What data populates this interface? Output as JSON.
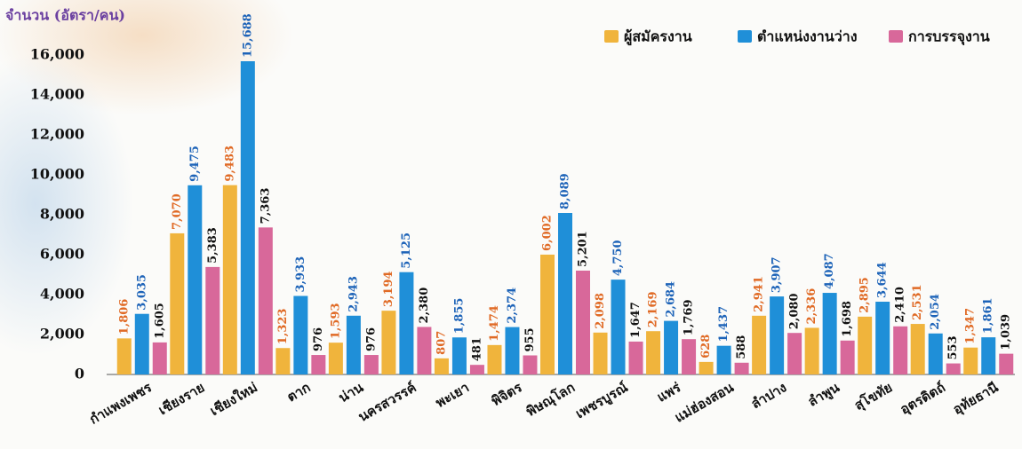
{
  "chart_data": {
    "type": "bar",
    "y_axis_label": "จำนวน (อัตรา/คน)",
    "categories": [
      "กำแพงเพชร",
      "เชียงราย",
      "เชียงใหม่",
      "ตาก",
      "น่าน",
      "นครสวรรค์",
      "พะเยา",
      "พิจิตร",
      "พิษณุโลก",
      "เพชรบูรณ์",
      "แพร่",
      "แม่ฮ่องสอน",
      "ลำปาง",
      "ลำพูน",
      "สุโขทัย",
      "อุตรดิตถ์",
      "อุทัยธานี"
    ],
    "series": [
      {
        "name": "ผู้สมัครงาน",
        "color": "#f0b43c",
        "label_color": "#e06a25",
        "values": [
          1806,
          7070,
          9483,
          1323,
          1593,
          3194,
          807,
          1474,
          6002,
          2098,
          2169,
          628,
          2941,
          2336,
          2895,
          2531,
          1347
        ],
        "value_labels": [
          "1,806",
          "7,070",
          "9,483",
          "1,323",
          "1,593",
          "3,194",
          "807",
          "1,474",
          "6,002",
          "2,098",
          "2,169",
          "628",
          "2,941",
          "2,336",
          "2,895",
          "2,531",
          "1,347"
        ]
      },
      {
        "name": "ตำแหน่งงานว่าง",
        "color": "#1f8fd8",
        "label_color": "#1d63b8",
        "values": [
          3035,
          9475,
          15688,
          3933,
          2943,
          5125,
          1855,
          2374,
          8089,
          4750,
          2684,
          1437,
          3907,
          4087,
          3644,
          2054,
          1861
        ],
        "value_labels": [
          "3,035",
          "9,475",
          "15,688",
          "3,933",
          "2,943",
          "5,125",
          "1,855",
          "2,374",
          "8,089",
          "4,750",
          "2,684",
          "1,437",
          "3,907",
          "4,087",
          "3,644",
          "2,054",
          "1,861"
        ]
      },
      {
        "name": "การบรรจุงาน",
        "color": "#d8689a",
        "label_color": "#111111",
        "values": [
          1605,
          5383,
          7363,
          976,
          976,
          2380,
          481,
          955,
          5201,
          1647,
          1769,
          588,
          2080,
          1698,
          2410,
          553,
          1039
        ],
        "value_labels": [
          "1,605",
          "5,383",
          "7,363",
          "976",
          "976",
          "2,380",
          "481",
          "955",
          "5,201",
          "1,647",
          "1,769",
          "588",
          "2,080",
          "1,698",
          "2,410",
          "553",
          "1,039"
        ]
      }
    ],
    "ylim": [
      0,
      16000
    ],
    "yticks": [
      0,
      {
        "value": 2000,
        "label": "2,000"
      },
      {
        "value": 4000,
        "label": "4,000"
      },
      {
        "value": 6000,
        "label": "6,000"
      },
      {
        "value": 8000,
        "label": "8,000"
      },
      {
        "value": 10000,
        "label": "10,000"
      },
      {
        "value": 12000,
        "label": "12,000"
      },
      {
        "value": 14000,
        "label": "14,000"
      },
      {
        "value": 16000,
        "label": "16,000"
      }
    ],
    "grid": false,
    "legend": "top-right"
  }
}
